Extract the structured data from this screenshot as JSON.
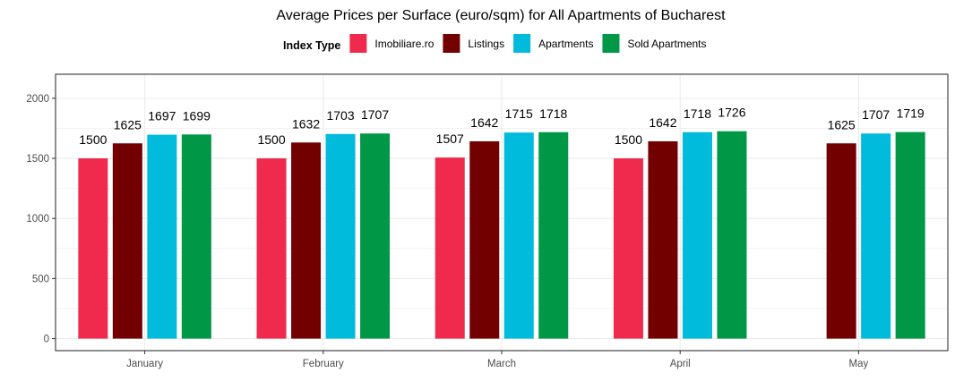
{
  "chart_data": {
    "type": "bar",
    "title": "Average Prices per Surface (euro/sqm) for All Apartments of Bucharest",
    "xlabel": "",
    "ylabel": "",
    "categories": [
      "January",
      "February",
      "March",
      "April",
      "May"
    ],
    "series": [
      {
        "name": "Imobiliare.ro",
        "color": "#ef2a4c",
        "values": [
          1500,
          1500,
          1507,
          1500,
          null
        ]
      },
      {
        "name": "Listings",
        "color": "#730000",
        "values": [
          1625,
          1632,
          1642,
          1642,
          1625
        ]
      },
      {
        "name": "Apartments",
        "color": "#00bbdb",
        "values": [
          1697,
          1703,
          1715,
          1718,
          1707
        ]
      },
      {
        "name": "Sold Apartments",
        "color": "#009747",
        "values": [
          1699,
          1707,
          1718,
          1726,
          1719
        ]
      }
    ],
    "ylim": [
      -100,
      2200
    ],
    "yticks": [
      0,
      500,
      1000,
      1500,
      2000
    ],
    "grid": true,
    "legend": {
      "title": "Index Type",
      "position": "top"
    },
    "panel_border_color": "#333333",
    "grid_color": "#ebebeb"
  }
}
